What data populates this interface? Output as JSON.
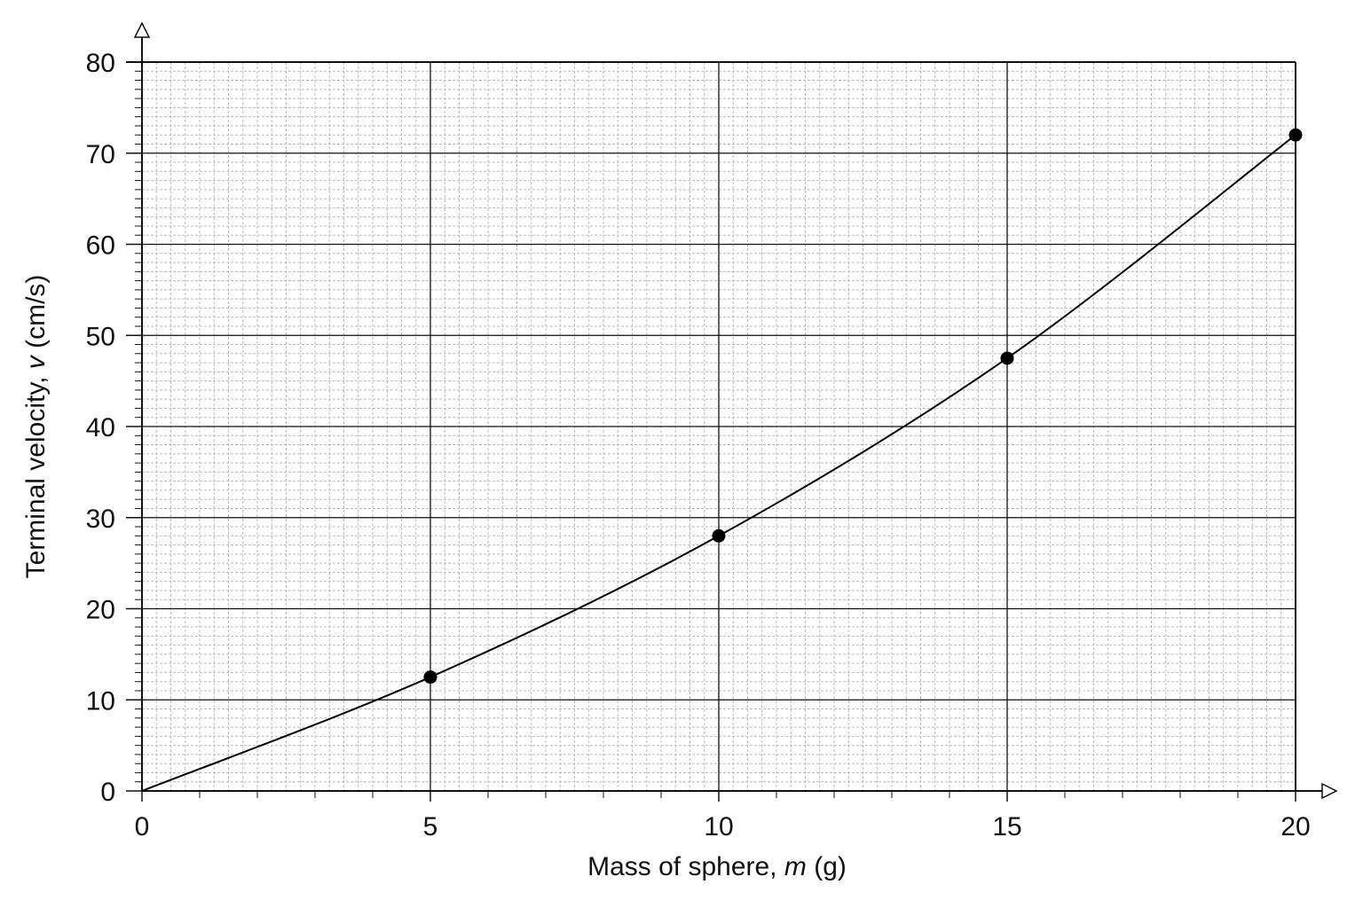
{
  "chart_data": {
    "type": "line",
    "xlabel": {
      "before": "Mass of sphere, ",
      "var": "m",
      "after": " (g)"
    },
    "ylabel": {
      "before": "Terminal velocity, ",
      "var": "v",
      "after": " (cm/s)"
    },
    "xlim": [
      0,
      20
    ],
    "xticks": [
      0,
      5,
      10,
      15,
      20
    ],
    "ylim": [
      0,
      80
    ],
    "yticks": [
      0,
      10,
      20,
      30,
      40,
      50,
      60,
      70,
      80
    ],
    "grid": true,
    "minor_grid": {
      "x": 0.25,
      "y": 1
    },
    "color": "#000000",
    "curve": {
      "x": [
        0,
        5,
        10,
        15,
        20
      ],
      "values": [
        0,
        12.5,
        28,
        47.5,
        72
      ]
    },
    "points": {
      "x": [
        5,
        10,
        15,
        20
      ],
      "values": [
        12.5,
        28,
        47.5,
        72
      ]
    }
  }
}
